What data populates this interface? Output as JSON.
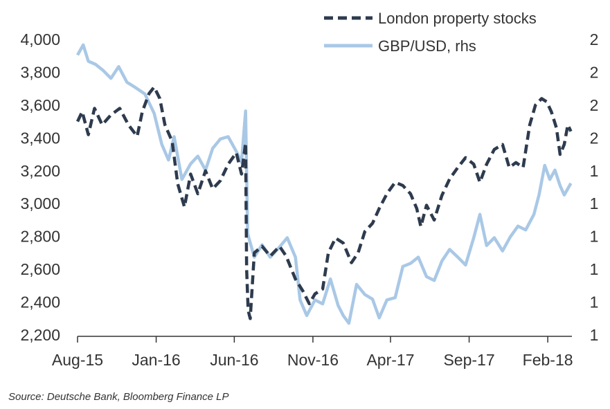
{
  "chart_data": {
    "type": "line",
    "title": "",
    "source": "Source: Deutsche Bank, Bloomberg Finance LP",
    "legend_placement": "top-right",
    "grid": false,
    "colors": {
      "property": "#2e3b4e",
      "gbp": "#a9c8e6",
      "axis": "#333333"
    },
    "x_ticks": [
      "Aug-15",
      "Jan-16",
      "Jun-16",
      "Nov-16",
      "Apr-17",
      "Sep-17",
      "Feb-18"
    ],
    "x_tick_dates": [
      "2015-08-01",
      "2016-01-01",
      "2016-06-01",
      "2016-11-01",
      "2017-04-01",
      "2017-09-01",
      "2018-02-01"
    ],
    "x_range": [
      "2015-08-01",
      "2018-03-20"
    ],
    "y_left": {
      "ylim": [
        2200,
        4000
      ],
      "ticks": [
        "4,000",
        "3,800",
        "3,600",
        "3,400",
        "3,200",
        "3,000",
        "2,800",
        "2,600",
        "2,400",
        "2,200"
      ]
    },
    "y_right": {
      "label": "",
      "ylim": [
        1.2,
        1.58
      ],
      "ticks": [
        "2",
        "2",
        "2",
        "2",
        "1",
        "1",
        "1",
        "1",
        "1",
        "1"
      ]
    },
    "series": [
      {
        "name": "London property stocks",
        "axis": "left",
        "style": "dashed",
        "points": [
          [
            "2015-08-01",
            3500
          ],
          [
            "2015-08-10",
            3560
          ],
          [
            "2015-08-22",
            3420
          ],
          [
            "2015-09-03",
            3580
          ],
          [
            "2015-09-18",
            3480
          ],
          [
            "2015-10-05",
            3540
          ],
          [
            "2015-10-22",
            3580
          ],
          [
            "2015-11-08",
            3480
          ],
          [
            "2015-11-25",
            3410
          ],
          [
            "2015-12-05",
            3560
          ],
          [
            "2015-12-18",
            3670
          ],
          [
            "2015-12-28",
            3710
          ],
          [
            "2016-01-08",
            3640
          ],
          [
            "2016-01-18",
            3480
          ],
          [
            "2016-02-01",
            3380
          ],
          [
            "2016-02-12",
            3120
          ],
          [
            "2016-02-25",
            2980
          ],
          [
            "2016-03-08",
            3180
          ],
          [
            "2016-03-22",
            3060
          ],
          [
            "2016-04-06",
            3200
          ],
          [
            "2016-04-20",
            3090
          ],
          [
            "2016-05-05",
            3140
          ],
          [
            "2016-05-20",
            3240
          ],
          [
            "2016-06-05",
            3310
          ],
          [
            "2016-06-15",
            3180
          ],
          [
            "2016-06-23",
            3370
          ],
          [
            "2016-06-25",
            2600
          ],
          [
            "2016-06-28",
            2350
          ],
          [
            "2016-07-02",
            2300
          ],
          [
            "2016-07-10",
            2700
          ],
          [
            "2016-07-25",
            2740
          ],
          [
            "2016-08-10",
            2680
          ],
          [
            "2016-08-28",
            2740
          ],
          [
            "2016-09-10",
            2680
          ],
          [
            "2016-09-28",
            2540
          ],
          [
            "2016-10-12",
            2470
          ],
          [
            "2016-10-25",
            2390
          ],
          [
            "2016-11-05",
            2450
          ],
          [
            "2016-11-20",
            2480
          ],
          [
            "2016-12-01",
            2700
          ],
          [
            "2016-12-15",
            2790
          ],
          [
            "2016-12-30",
            2760
          ],
          [
            "2017-01-15",
            2640
          ],
          [
            "2017-01-28",
            2700
          ],
          [
            "2017-02-10",
            2830
          ],
          [
            "2017-02-25",
            2880
          ],
          [
            "2017-03-10",
            2970
          ],
          [
            "2017-03-25",
            3060
          ],
          [
            "2017-04-10",
            3130
          ],
          [
            "2017-04-25",
            3110
          ],
          [
            "2017-05-10",
            3060
          ],
          [
            "2017-05-22",
            2970
          ],
          [
            "2017-05-30",
            2860
          ],
          [
            "2017-06-10",
            2990
          ],
          [
            "2017-06-25",
            2900
          ],
          [
            "2017-07-10",
            3050
          ],
          [
            "2017-07-25",
            3150
          ],
          [
            "2017-08-10",
            3220
          ],
          [
            "2017-08-25",
            3280
          ],
          [
            "2017-09-10",
            3240
          ],
          [
            "2017-09-22",
            3130
          ],
          [
            "2017-10-05",
            3240
          ],
          [
            "2017-10-20",
            3330
          ],
          [
            "2017-11-05",
            3360
          ],
          [
            "2017-11-18",
            3220
          ],
          [
            "2017-12-01",
            3250
          ],
          [
            "2017-12-15",
            3220
          ],
          [
            "2017-12-28",
            3480
          ],
          [
            "2018-01-08",
            3600
          ],
          [
            "2018-01-20",
            3640
          ],
          [
            "2018-01-30",
            3620
          ],
          [
            "2018-02-08",
            3560
          ],
          [
            "2018-02-18",
            3460
          ],
          [
            "2018-02-25",
            3300
          ],
          [
            "2018-03-05",
            3360
          ],
          [
            "2018-03-12",
            3480
          ],
          [
            "2018-03-18",
            3440
          ]
        ]
      },
      {
        "name": "GBP/USD, rhs",
        "axis": "right",
        "style": "solid",
        "points": [
          [
            "2015-08-01",
            1.56
          ],
          [
            "2015-08-12",
            1.573
          ],
          [
            "2015-08-22",
            1.552
          ],
          [
            "2015-09-05",
            1.548
          ],
          [
            "2015-09-20",
            1.54
          ],
          [
            "2015-10-05",
            1.53
          ],
          [
            "2015-10-20",
            1.545
          ],
          [
            "2015-11-05",
            1.525
          ],
          [
            "2015-11-22",
            1.518
          ],
          [
            "2015-12-10",
            1.51
          ],
          [
            "2015-12-28",
            1.485
          ],
          [
            "2016-01-12",
            1.445
          ],
          [
            "2016-01-25",
            1.425
          ],
          [
            "2016-02-05",
            1.455
          ],
          [
            "2016-02-20",
            1.4
          ],
          [
            "2016-03-08",
            1.42
          ],
          [
            "2016-03-22",
            1.43
          ],
          [
            "2016-04-06",
            1.412
          ],
          [
            "2016-04-20",
            1.44
          ],
          [
            "2016-05-05",
            1.452
          ],
          [
            "2016-05-20",
            1.455
          ],
          [
            "2016-06-05",
            1.436
          ],
          [
            "2016-06-15",
            1.422
          ],
          [
            "2016-06-23",
            1.488
          ],
          [
            "2016-06-27",
            1.33
          ],
          [
            "2016-07-10",
            1.3
          ],
          [
            "2016-07-25",
            1.316
          ],
          [
            "2016-08-10",
            1.3
          ],
          [
            "2016-08-28",
            1.313
          ],
          [
            "2016-09-12",
            1.325
          ],
          [
            "2016-09-28",
            1.3
          ],
          [
            "2016-10-07",
            1.245
          ],
          [
            "2016-10-20",
            1.225
          ],
          [
            "2016-11-05",
            1.245
          ],
          [
            "2016-11-20",
            1.24
          ],
          [
            "2016-12-05",
            1.272
          ],
          [
            "2016-12-20",
            1.238
          ],
          [
            "2016-12-30",
            1.225
          ],
          [
            "2017-01-10",
            1.215
          ],
          [
            "2017-01-25",
            1.265
          ],
          [
            "2017-02-10",
            1.252
          ],
          [
            "2017-02-25",
            1.246
          ],
          [
            "2017-03-10",
            1.222
          ],
          [
            "2017-03-25",
            1.245
          ],
          [
            "2017-04-10",
            1.248
          ],
          [
            "2017-04-25",
            1.288
          ],
          [
            "2017-05-10",
            1.292
          ],
          [
            "2017-05-25",
            1.3
          ],
          [
            "2017-06-10",
            1.275
          ],
          [
            "2017-06-25",
            1.27
          ],
          [
            "2017-07-10",
            1.295
          ],
          [
            "2017-07-25",
            1.31
          ],
          [
            "2017-08-10",
            1.3
          ],
          [
            "2017-08-25",
            1.29
          ],
          [
            "2017-09-10",
            1.325
          ],
          [
            "2017-09-22",
            1.355
          ],
          [
            "2017-10-05",
            1.315
          ],
          [
            "2017-10-20",
            1.325
          ],
          [
            "2017-11-05",
            1.308
          ],
          [
            "2017-11-20",
            1.326
          ],
          [
            "2017-12-05",
            1.34
          ],
          [
            "2017-12-20",
            1.335
          ],
          [
            "2018-01-05",
            1.355
          ],
          [
            "2018-01-15",
            1.38
          ],
          [
            "2018-01-26",
            1.418
          ],
          [
            "2018-02-05",
            1.4
          ],
          [
            "2018-02-15",
            1.412
          ],
          [
            "2018-02-25",
            1.392
          ],
          [
            "2018-03-05",
            1.38
          ],
          [
            "2018-03-18",
            1.395
          ]
        ]
      }
    ]
  }
}
